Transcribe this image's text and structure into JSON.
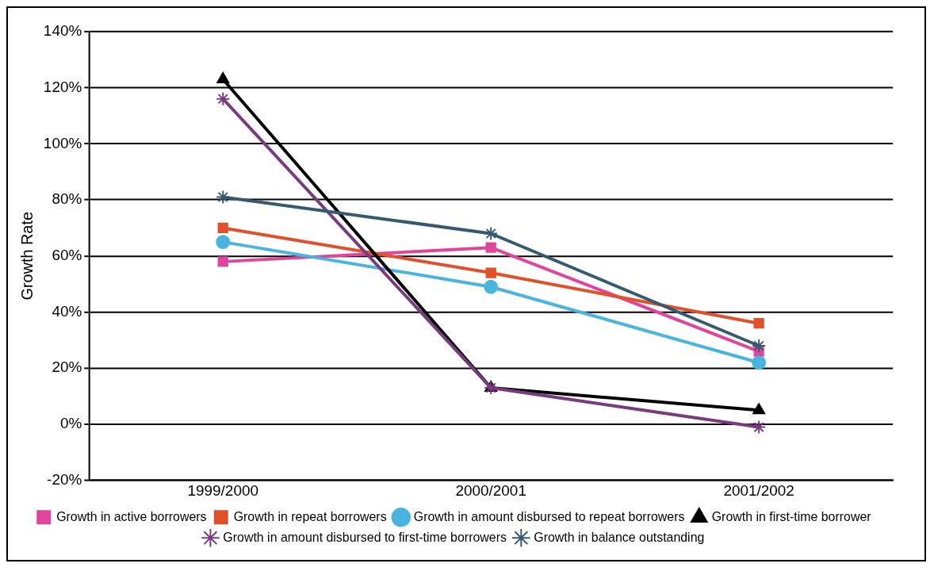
{
  "chart_data": {
    "type": "line",
    "ylabel": "Growth Rate",
    "categories": [
      "1999/2000",
      "2000/2001",
      "2001/2002"
    ],
    "series": [
      {
        "name": "Growth in active borrowers",
        "color": "#e0449c",
        "marker": "square",
        "values": [
          58,
          63,
          26
        ]
      },
      {
        "name": "Growth in repeat borrowers",
        "color": "#e0502a",
        "marker": "square",
        "values": [
          70,
          54,
          36
        ]
      },
      {
        "name": "Growth in amount disbursed to repeat borrowers",
        "color": "#4ab4e0",
        "marker": "circle",
        "values": [
          65,
          49,
          22
        ]
      },
      {
        "name": "Growth in first-time borrower",
        "color": "#000000",
        "marker": "triangle",
        "values": [
          123,
          13,
          5
        ]
      },
      {
        "name": "Growth in amount disbursed to first-time borrowers",
        "color": "#7a3a80",
        "marker": "cross",
        "values": [
          116,
          13,
          -1
        ]
      },
      {
        "name": "Growth in balance outstanding",
        "color": "#355a70",
        "marker": "cross",
        "values": [
          81,
          68,
          28
        ]
      }
    ],
    "ylim": [
      -20,
      140
    ],
    "yticks": [
      {
        "value": -20,
        "label": "-20%"
      },
      {
        "value": 0,
        "label": "0%"
      },
      {
        "value": 20,
        "label": "20%"
      },
      {
        "value": 40,
        "label": "40%"
      },
      {
        "value": 60,
        "label": "60%"
      },
      {
        "value": 80,
        "label": "80%"
      },
      {
        "value": 100,
        "label": "100%"
      },
      {
        "value": 120,
        "label": "120%"
      },
      {
        "value": 140,
        "label": "140%"
      }
    ],
    "grid": "y",
    "legend": "bottom"
  }
}
